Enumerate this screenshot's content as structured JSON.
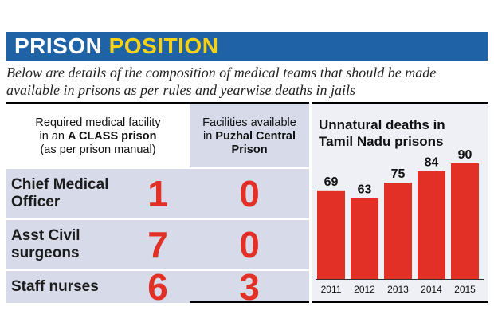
{
  "banner": {
    "title_word1": "PRISON",
    "title_word2": "POSITION",
    "colors": {
      "background": "#1f63a6",
      "word1": "#ffffff",
      "word2": "#f7d117"
    }
  },
  "intro": "Below are details of the composition of medical teams that should be made available in prisons as per rules and yearwise deaths in jails",
  "table": {
    "header_required": {
      "line1": "Required medical facility",
      "line2_prefix": "in an ",
      "line2_bold": "A CLASS prison",
      "line3": "(as per prison manual)"
    },
    "header_available": {
      "line1": "Facilities available",
      "line2_prefix": "in ",
      "line2_bold": "Puzhal Central",
      "line3_bold": "Prison"
    },
    "rows": [
      {
        "label_line1": "Chief Medical",
        "label_line2": "Officer",
        "required": "1",
        "available": "0"
      },
      {
        "label_line1": "Asst Civil",
        "label_line2": "surgeons",
        "required": "7",
        "available": "0"
      },
      {
        "label_line1": "Staff nurses",
        "label_line2": "",
        "required": "6",
        "available": "3"
      }
    ],
    "colors": {
      "shade": "#d7dae9",
      "value": "#e33026"
    }
  },
  "chart_data": {
    "type": "bar",
    "title_line1": "Unnatural deaths in",
    "title_line2": "Tamil Nadu prisons",
    "categories": [
      "2011",
      "2012",
      "2013",
      "2014",
      "2015"
    ],
    "values": [
      69,
      63,
      75,
      84,
      90
    ],
    "xlabel": "",
    "ylabel": "",
    "ylim": [
      0,
      90
    ],
    "grid": false,
    "bar_color": "#e33026",
    "data_labels": true
  }
}
